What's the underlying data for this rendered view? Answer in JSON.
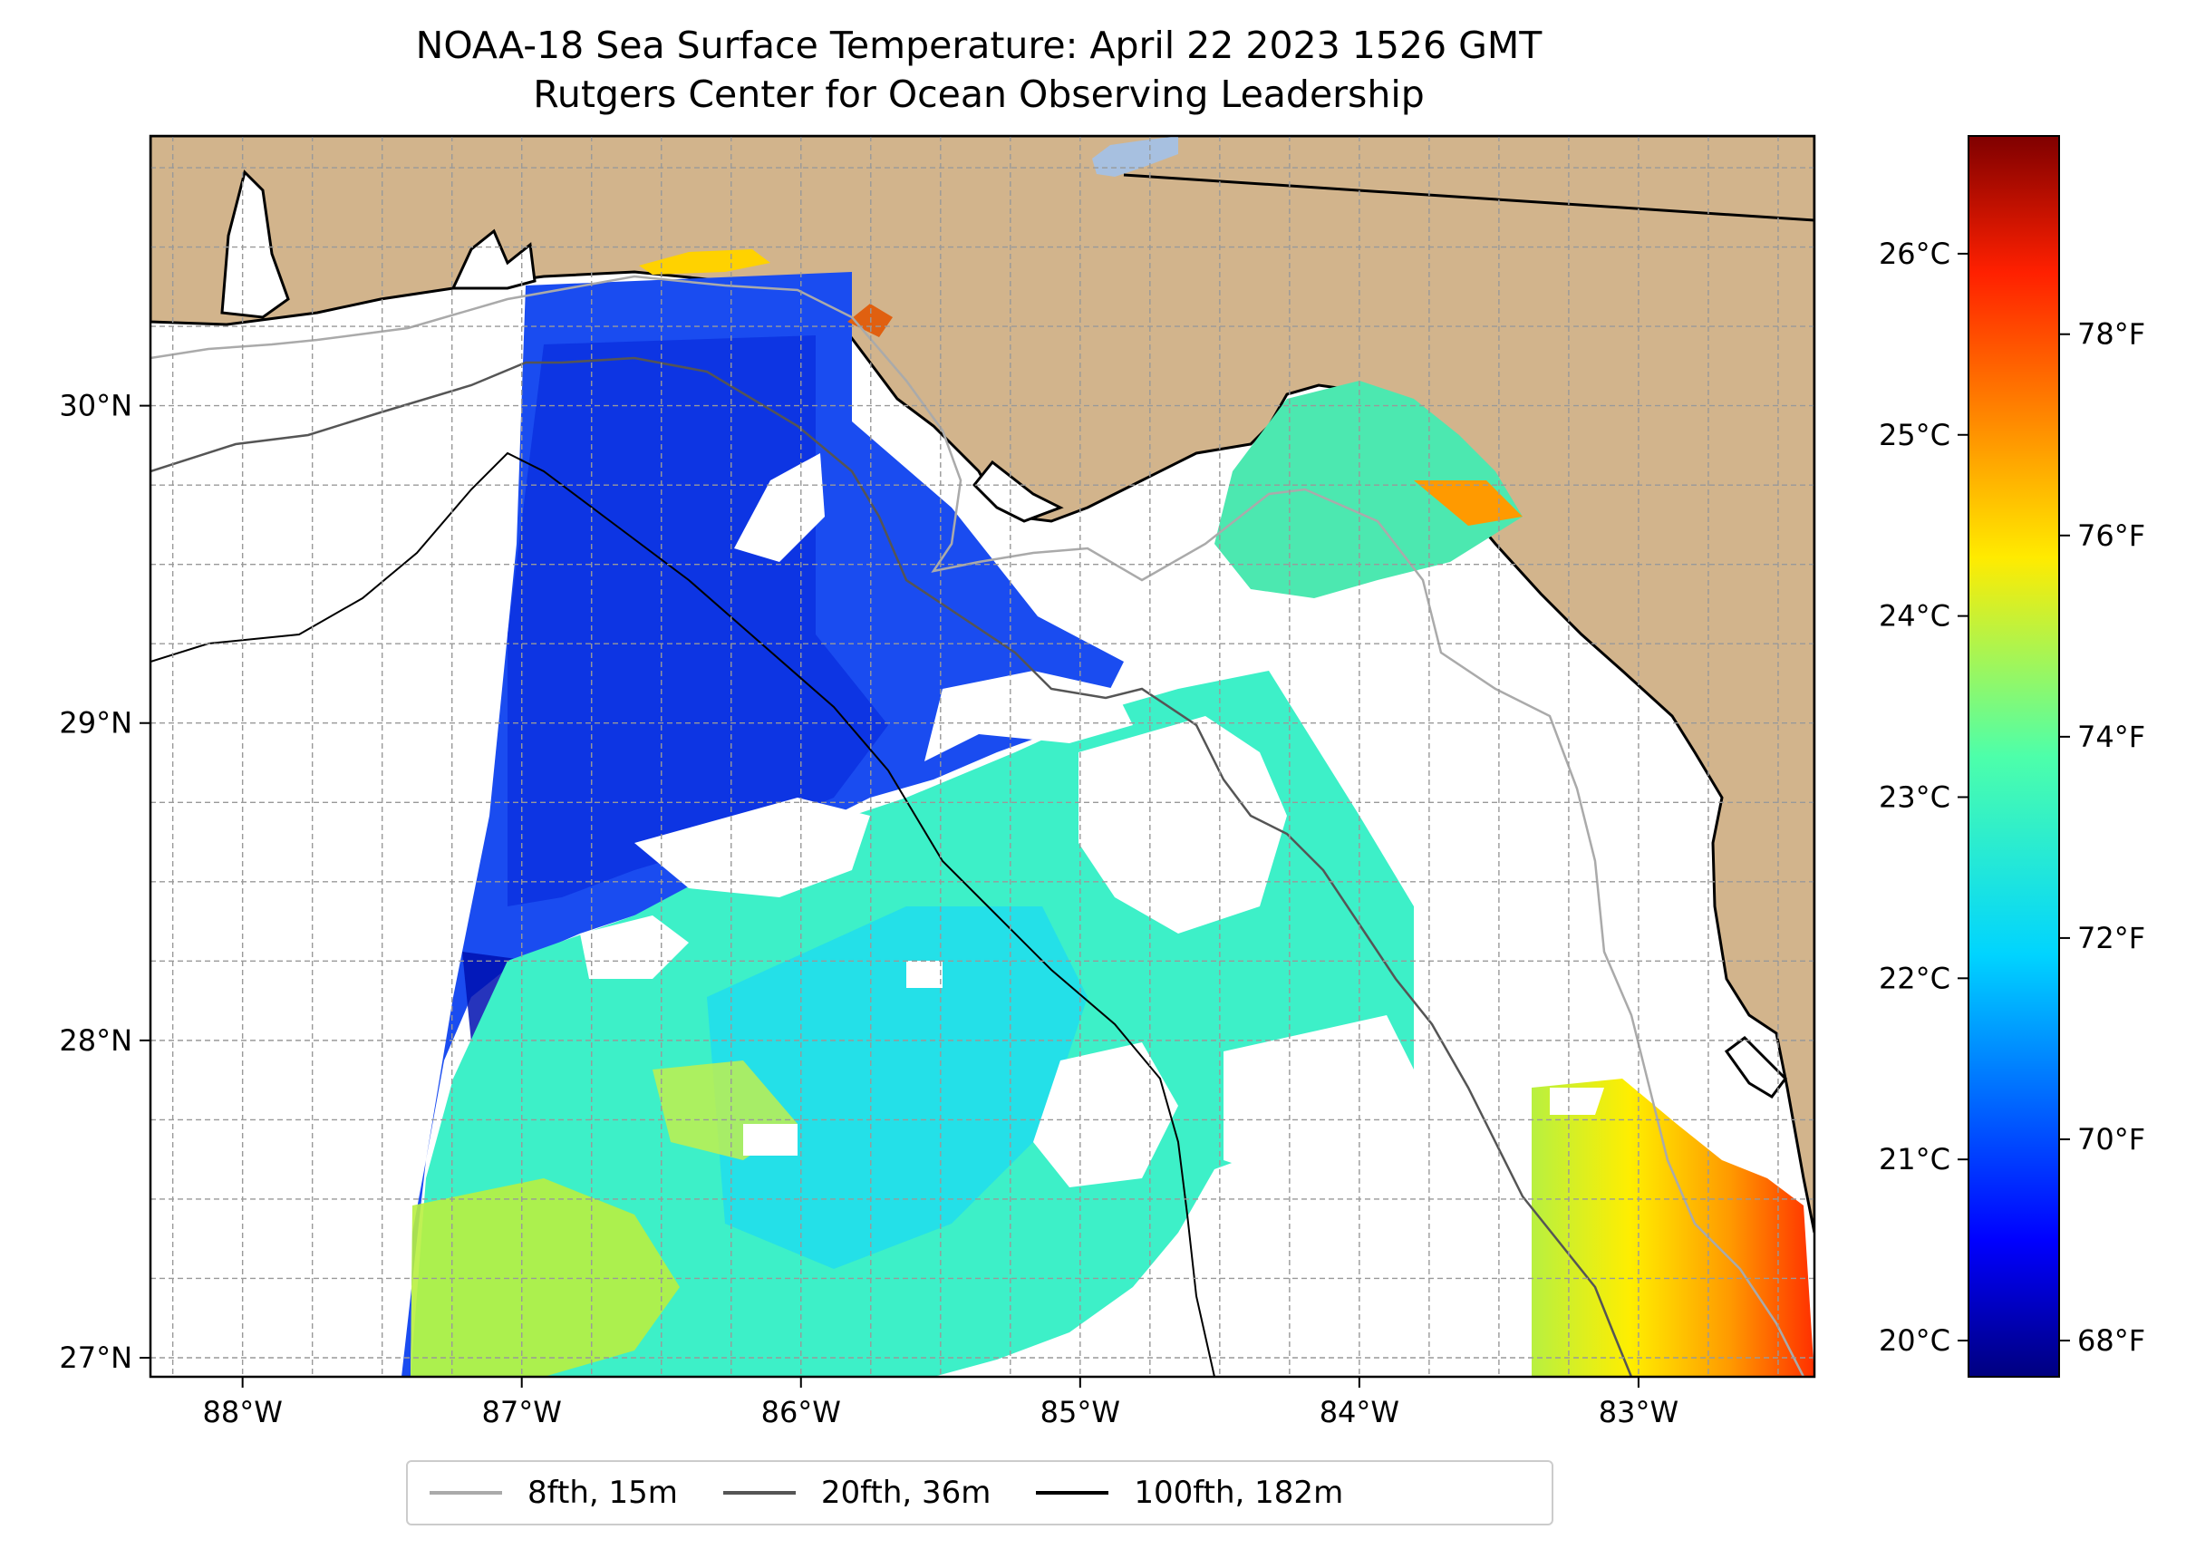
{
  "title": "NOAA-18 Sea Surface Temperature: April 22 2023 1526 GMT",
  "subtitle": "Rutgers Center for Ocean Observing Leadership",
  "map": {
    "lon_range": [
      -88.33,
      -82.37
    ],
    "lat_range": [
      26.94,
      30.85
    ],
    "lon_ticks": [
      {
        "value": -88,
        "label": "88°W"
      },
      {
        "value": -87,
        "label": "87°W"
      },
      {
        "value": -86,
        "label": "86°W"
      },
      {
        "value": -85,
        "label": "85°W"
      },
      {
        "value": -84,
        "label": "84°W"
      },
      {
        "value": -83,
        "label": "83°W"
      }
    ],
    "lat_ticks": [
      {
        "value": 30,
        "label": "30°N"
      },
      {
        "value": 29,
        "label": "29°N"
      },
      {
        "value": 28,
        "label": "28°N"
      },
      {
        "value": 27,
        "label": "27°N"
      }
    ],
    "grid": true,
    "land_color": "#d2b48c",
    "colormap": "jet"
  },
  "colorbar": {
    "celsius_ticks": [
      {
        "value": 20,
        "label": "20°C"
      },
      {
        "value": 21,
        "label": "21°C"
      },
      {
        "value": 22,
        "label": "22°C"
      },
      {
        "value": 23,
        "label": "23°C"
      },
      {
        "value": 24,
        "label": "24°C"
      },
      {
        "value": 25,
        "label": "25°C"
      },
      {
        "value": 26,
        "label": "26°C"
      }
    ],
    "fahrenheit_ticks": [
      {
        "value": 68,
        "label": "68°F"
      },
      {
        "value": 70,
        "label": "70°F"
      },
      {
        "value": 72,
        "label": "72°F"
      },
      {
        "value": 74,
        "label": "74°F"
      },
      {
        "value": 76,
        "label": "76°F"
      },
      {
        "value": 78,
        "label": "78°F"
      }
    ],
    "range_c": [
      19.8,
      26.65
    ]
  },
  "legend": {
    "items": [
      {
        "label": "8fth, 15m",
        "color": "#aaaaaa"
      },
      {
        "label": "20fth, 36m",
        "color": "#555555"
      },
      {
        "label": "100fth, 182m",
        "color": "#000000"
      }
    ],
    "placement": "bottom-center"
  }
}
